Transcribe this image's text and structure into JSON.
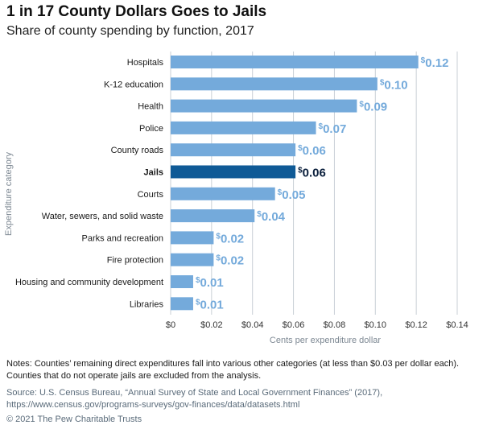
{
  "header": {
    "title": "1 in 17 County Dollars Goes to Jails",
    "subtitle": "Share of county spending by function, 2017"
  },
  "chart_data": {
    "type": "bar",
    "orientation": "horizontal",
    "categories": [
      "Hospitals",
      "K-12 education",
      "Health",
      "Police",
      "County roads",
      "Jails",
      "Courts",
      "Water, sewers, and solid waste",
      "Parks and recreation",
      "Fire protection",
      "Housing and community development",
      "Libraries"
    ],
    "values": [
      0.121,
      0.101,
      0.091,
      0.071,
      0.061,
      0.061,
      0.051,
      0.041,
      0.021,
      0.021,
      0.011,
      0.011
    ],
    "data_labels": [
      "0.12",
      "0.10",
      "0.09",
      "0.07",
      "0.06",
      "0.06",
      "0.05",
      "0.04",
      "0.02",
      "0.02",
      "0.01",
      "0.01"
    ],
    "label_prefix": "$",
    "highlight_category": "Jails",
    "xlim": [
      0,
      0.14
    ],
    "xticks": [
      0,
      0.02,
      0.04,
      0.06,
      0.08,
      0.1,
      0.12,
      0.14
    ],
    "xtick_labels": [
      "$0",
      "$0.02",
      "$0.04",
      "$0.06",
      "$0.08",
      "$0.10",
      "$0.12",
      "$0.14"
    ],
    "xlabel": "Cents per expenditure dollar",
    "ylabel": "Expenditure category",
    "grid": "vertical",
    "colors": {
      "bar": "#74aadb",
      "highlight": "#0f5a96",
      "label": "#74aadb",
      "highlight_label": "#0a1f3c",
      "grid": "#c9cfd6",
      "axis_text": "#7d8893"
    }
  },
  "footer": {
    "notes": "Notes: Counties’ remaining direct expenditures fall into various other categories (at less than $0.03 per dollar each). Counties that do not operate jails are excluded from the analysis.",
    "source": "Source: U.S. Census Bureau, “Annual Survey of State and Local Government Finances” (2017), https://www.census.gov/programs-surveys/gov-finances/data/datasets.html",
    "copyright": "© 2021 The Pew Charitable Trusts"
  }
}
